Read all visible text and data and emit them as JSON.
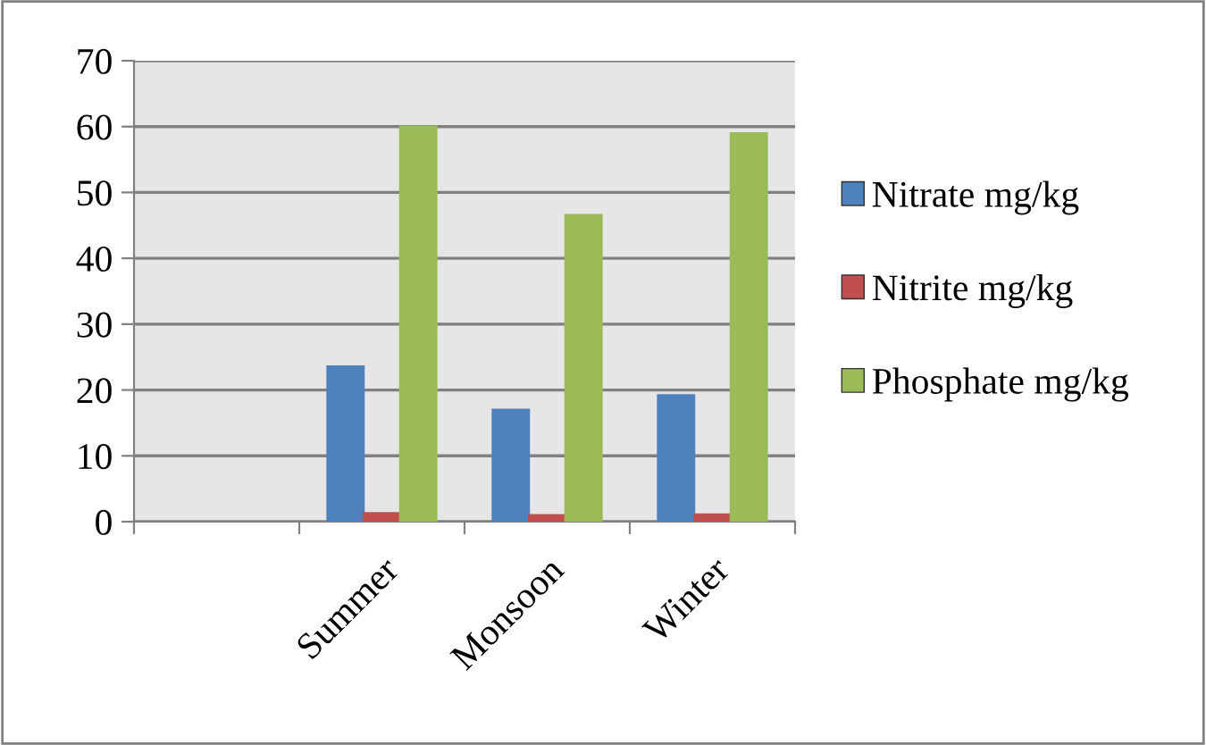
{
  "chart_data": {
    "type": "bar",
    "categories": [
      null,
      "Summer",
      "Monsoon",
      "Winter"
    ],
    "series": [
      {
        "name": "Nitrate mg/kg",
        "color": "#4f81bd",
        "values": [
          null,
          23.6,
          17,
          19.2
        ]
      },
      {
        "name": "Nitrite mg/kg",
        "color": "#c0504d",
        "values": [
          null,
          1.3,
          1.0,
          1.1
        ]
      },
      {
        "name": "Phosphate mg/kg",
        "color": "#9bbb59",
        "values": [
          null,
          60,
          46.6,
          59
        ]
      }
    ],
    "ylim": [
      0,
      70
    ],
    "yticks": [
      0,
      10,
      20,
      30,
      40,
      50,
      60,
      70
    ],
    "grid": "y",
    "legend": "right"
  }
}
